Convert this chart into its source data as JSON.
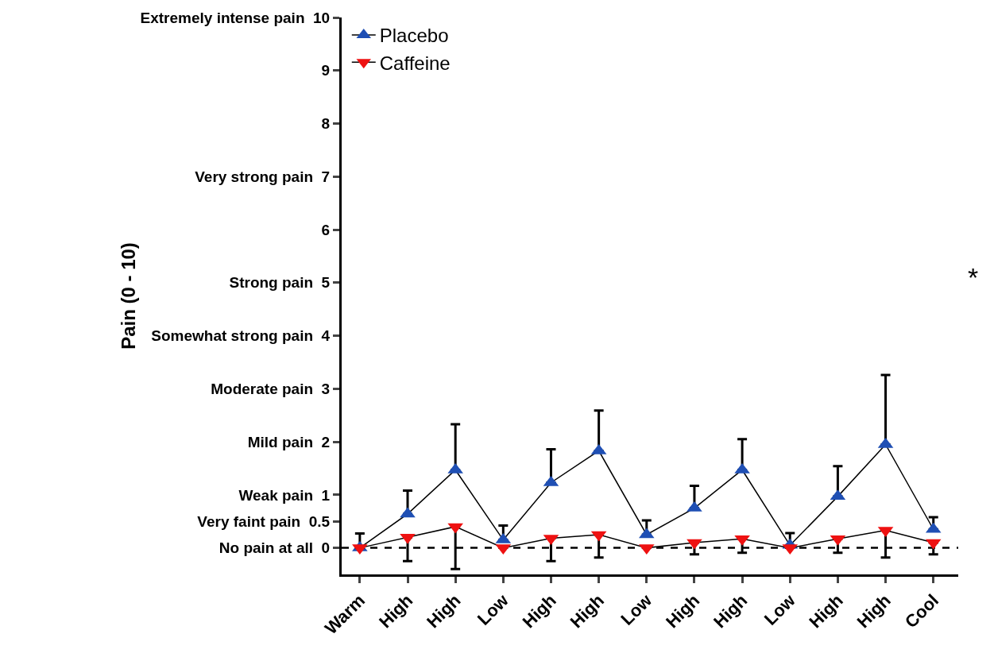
{
  "chart_data": {
    "type": "line",
    "ylabel": "Pain (0 - 10)",
    "categories": [
      "Warm",
      "High",
      "High",
      "Low",
      "High",
      "High",
      "Low",
      "High",
      "High",
      "Low",
      "High",
      "High",
      "Cool"
    ],
    "series": [
      {
        "name": "Placebo",
        "color": "#1f4fb4",
        "marker": "triangle",
        "values": [
          0.0,
          0.64,
          1.47,
          0.15,
          1.23,
          1.83,
          0.25,
          0.75,
          1.47,
          0.05,
          0.97,
          1.95,
          0.35
        ],
        "errors": [
          [
            0.0,
            0.27
          ],
          [
            0.64,
            1.08
          ],
          [
            1.47,
            2.33
          ],
          [
            0.15,
            0.42
          ],
          [
            1.23,
            1.86
          ],
          [
            1.83,
            2.59
          ],
          [
            0.25,
            0.52
          ],
          [
            0.75,
            1.17
          ],
          [
            1.47,
            2.05
          ],
          [
            0.05,
            0.28
          ],
          [
            0.97,
            1.54
          ],
          [
            1.95,
            3.26
          ],
          [
            0.35,
            0.58
          ]
        ]
      },
      {
        "name": "Caffeine",
        "color": "#ee1111",
        "marker": "triangle-down",
        "values": [
          0.0,
          0.2,
          0.4,
          0.0,
          0.18,
          0.25,
          0.0,
          0.1,
          0.17,
          0.0,
          0.17,
          0.33,
          0.1
        ],
        "errors": [
          [
            0.0,
            0.0
          ],
          [
            -0.25,
            0.2
          ],
          [
            -0.4,
            0.4
          ],
          [
            0.0,
            0.0
          ],
          [
            -0.25,
            0.18
          ],
          [
            -0.18,
            0.25
          ],
          [
            0.0,
            0.0
          ],
          [
            -0.12,
            0.1
          ],
          [
            -0.09,
            0.17
          ],
          [
            0.0,
            0.0
          ],
          [
            -0.09,
            0.17
          ],
          [
            -0.18,
            0.33
          ],
          [
            -0.12,
            0.1
          ]
        ]
      }
    ],
    "ylim": [
      -0.5,
      10
    ],
    "yticks": [
      {
        "value": 0,
        "label": "No pain at all  0"
      },
      {
        "value": 0.5,
        "label": "Very faint pain  0.5"
      },
      {
        "value": 1,
        "label": "Weak pain  1"
      },
      {
        "value": 2,
        "label": "Mild pain  2"
      },
      {
        "value": 3,
        "label": "Moderate pain  3"
      },
      {
        "value": 4,
        "label": "Somewhat strong pain  4"
      },
      {
        "value": 5,
        "label": "Strong pain  5"
      },
      6,
      {
        "value": 7,
        "label": "Very strong pain  7"
      },
      8,
      9,
      {
        "value": 10,
        "label": "Extremely intense pain  10"
      }
    ],
    "ref_lines": [
      {
        "axis": "y",
        "value": 0,
        "color": "#000000",
        "line_style": "dashed"
      }
    ],
    "annotations": [
      "*"
    ],
    "legend": "top left",
    "grid": false
  }
}
